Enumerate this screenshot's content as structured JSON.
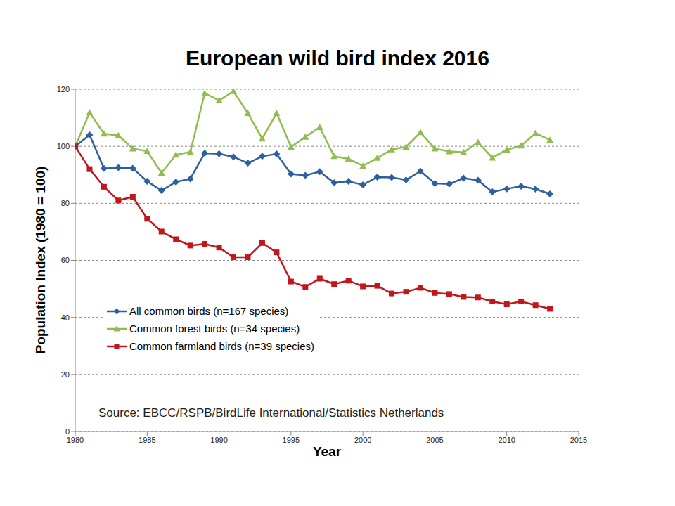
{
  "chart_data": {
    "type": "line",
    "title": "European wild bird index 2016",
    "x_label": "Year",
    "y_label": "Population Index (1980 = 100)",
    "annotations": [
      "Source: EBCC/RSPB/BirdLife International/Statistics Netherlands"
    ],
    "x": [
      1980,
      1981,
      1982,
      1983,
      1984,
      1985,
      1986,
      1987,
      1988,
      1989,
      1990,
      1991,
      1992,
      1993,
      1994,
      1995,
      1996,
      1997,
      1998,
      1999,
      2000,
      2001,
      2002,
      2003,
      2004,
      2005,
      2006,
      2007,
      2008,
      2009,
      2010,
      2011,
      2012,
      2013
    ],
    "series": [
      {
        "name": "All common birds (n=167 species)",
        "color": "#2e5f9e",
        "marker": "diamond",
        "values": [
          100,
          104,
          92.2,
          92.5,
          92.3,
          87.7,
          84.5,
          87.5,
          88.6,
          97.6,
          97.4,
          96.3,
          94.1,
          96.5,
          97.3,
          90.3,
          89.8,
          91.1,
          87.2,
          87.7,
          86.5,
          89.2,
          89.1,
          88.2,
          91.3,
          87,
          86.8,
          88.8,
          88.1,
          84,
          85.1,
          86,
          85,
          83.3
        ]
      },
      {
        "name": "Common forest birds (n=34 species)",
        "color": "#8fbd4f",
        "marker": "triangle",
        "values": [
          100,
          111.8,
          104.4,
          103.8,
          99.2,
          98.3,
          90.7,
          97,
          98,
          118.6,
          116.1,
          119.3,
          111.6,
          102.7,
          111.6,
          99.8,
          103.3,
          106.7,
          96.5,
          95.6,
          93.1,
          95.9,
          98.9,
          99.8,
          104.9,
          99.2,
          98.2,
          97.9,
          101.4,
          96,
          98.8,
          100.2,
          104.6,
          102.2
        ]
      },
      {
        "name": "Common farmland birds (n=39 species)",
        "color": "#c0171c",
        "marker": "square",
        "values": [
          100,
          92,
          85.8,
          81,
          82.3,
          74.6,
          70.1,
          67.4,
          65.2,
          65.8,
          64.5,
          61.1,
          61.1,
          66.1,
          62.8,
          52.6,
          50.7,
          53.6,
          51.7,
          52.9,
          50.9,
          51.1,
          48.4,
          49,
          50.4,
          48.6,
          48.2,
          47.2,
          47,
          45.6,
          44.6,
          45.6,
          44.3,
          43
        ]
      }
    ],
    "xlim": [
      1980,
      2015
    ],
    "xticks": [
      1980,
      1985,
      1990,
      1995,
      2000,
      2005,
      2010,
      2015
    ],
    "ylim": [
      0,
      120
    ],
    "yticks": [
      0,
      20,
      40,
      60,
      80,
      100,
      120
    ],
    "grid": true,
    "legend": "lower left"
  }
}
